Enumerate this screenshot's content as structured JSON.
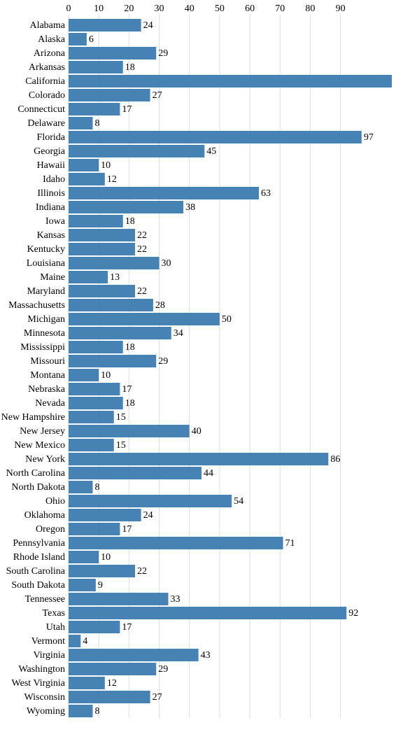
{
  "chart_data": {
    "type": "barh",
    "categories": [
      "Alabama",
      "Alaska",
      "Arizona",
      "Arkansas",
      "California",
      "Colorado",
      "Connecticut",
      "Delaware",
      "Florida",
      "Georgia",
      "Hawaii",
      "Idaho",
      "Illinois",
      "Indiana",
      "Iowa",
      "Kansas",
      "Kentucky",
      "Louisiana",
      "Maine",
      "Maryland",
      "Massachusetts",
      "Michigan",
      "Minnesota",
      "Mississippi",
      "Missouri",
      "Montana",
      "Nebraska",
      "Nevada",
      "New Hampshire",
      "New Jersey",
      "New Mexico",
      "New York",
      "North Carolina",
      "North Dakota",
      "Ohio",
      "Oklahoma",
      "Oregon",
      "Pennsylvania",
      "Rhode Island",
      "South Carolina",
      "South Dakota",
      "Tennessee",
      "Texas",
      "Utah",
      "Vermont",
      "Virginia",
      "Washington",
      "West Virginia",
      "Wisconsin",
      "Wyoming"
    ],
    "values": [
      24,
      6,
      29,
      18,
      107,
      27,
      17,
      8,
      97,
      45,
      10,
      12,
      63,
      38,
      18,
      22,
      22,
      30,
      13,
      22,
      28,
      50,
      34,
      18,
      29,
      10,
      17,
      18,
      15,
      40,
      15,
      86,
      44,
      8,
      54,
      24,
      17,
      71,
      10,
      22,
      9,
      33,
      92,
      17,
      4,
      43,
      29,
      12,
      27,
      8
    ],
    "color": "#4682b4",
    "xlim": [
      0,
      107
    ],
    "xticks": [
      0,
      10,
      20,
      30,
      40,
      50,
      60,
      70,
      80,
      90
    ],
    "grid": true
  }
}
